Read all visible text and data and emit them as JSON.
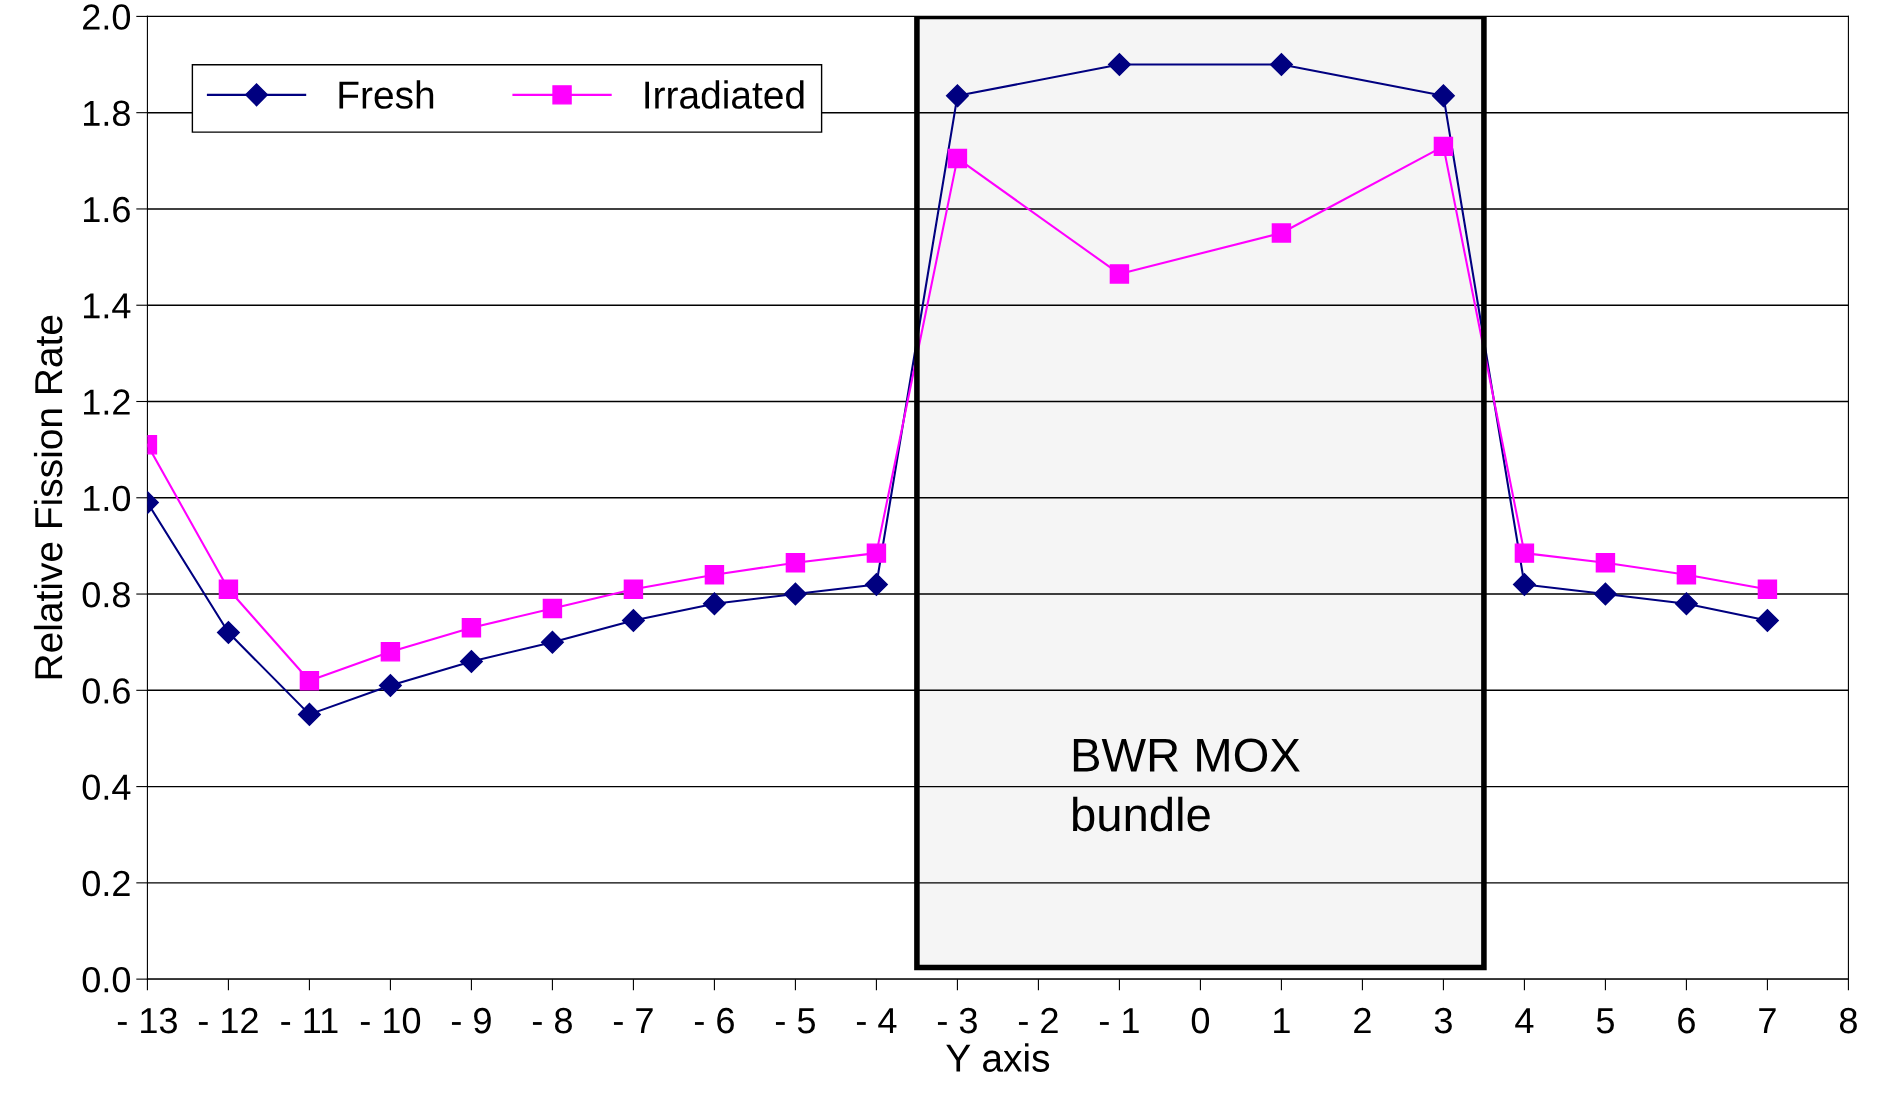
{
  "chart_data": {
    "type": "line",
    "xlabel": "Y axis",
    "ylabel": "Relative Fission Rate",
    "series": [
      {
        "name": "Fresh",
        "color": "#000080",
        "marker": "diamond",
        "x": [
          -13,
          -12,
          -11,
          -10,
          -9,
          -8,
          -7,
          -6,
          -5,
          -4,
          -3,
          -1,
          1,
          3,
          4,
          5,
          6,
          7
        ],
        "values": [
          0.99,
          0.72,
          0.55,
          0.61,
          0.66,
          0.7,
          0.745,
          0.78,
          0.8,
          0.82,
          1.835,
          1.9,
          1.9,
          1.835,
          0.82,
          0.8,
          0.78,
          0.745
        ]
      },
      {
        "name": "Irradiated",
        "color": "#ff00ff",
        "marker": "square",
        "x": [
          -13,
          -12,
          -11,
          -10,
          -9,
          -8,
          -7,
          -6,
          -5,
          -4,
          -3,
          -1,
          1,
          3,
          4,
          5,
          6,
          7
        ],
        "values": [
          1.11,
          0.81,
          0.62,
          0.68,
          0.73,
          0.77,
          0.81,
          0.84,
          0.865,
          0.885,
          1.705,
          1.465,
          1.55,
          1.73,
          0.885,
          0.865,
          0.84,
          0.81
        ]
      }
    ],
    "xlim": [
      -13,
      8
    ],
    "xticks": [
      {
        "value": -13,
        "label": "- 13"
      },
      {
        "value": -12,
        "label": "- 12"
      },
      {
        "value": -11,
        "label": "- 11"
      },
      {
        "value": -10,
        "label": "- 10"
      },
      {
        "value": -9,
        "label": "- 9"
      },
      {
        "value": -8,
        "label": "- 8"
      },
      {
        "value": -7,
        "label": "- 7"
      },
      {
        "value": -6,
        "label": "- 6"
      },
      {
        "value": -5,
        "label": "- 5"
      },
      {
        "value": -4,
        "label": "- 4"
      },
      {
        "value": -3,
        "label": "- 3"
      },
      {
        "value": -2,
        "label": "- 2"
      },
      {
        "value": -1,
        "label": "- 1"
      },
      0,
      1,
      2,
      3,
      4,
      5,
      6,
      7,
      8
    ],
    "ylim": [
      0,
      2
    ],
    "yticks": [
      {
        "value": 0,
        "label": "0.0"
      },
      {
        "value": 0.2,
        "label": "0.2"
      },
      {
        "value": 0.4,
        "label": "0.4"
      },
      {
        "value": 0.6,
        "label": "0.6"
      },
      {
        "value": 0.8,
        "label": "0.8"
      },
      {
        "value": 1,
        "label": "1.0"
      },
      {
        "value": 1.2,
        "label": "1.2"
      },
      {
        "value": 1.4,
        "label": "1.4"
      },
      {
        "value": 1.6,
        "label": "1.6"
      },
      {
        "value": 1.8,
        "label": "1.8"
      },
      {
        "value": 2,
        "label": "2.0"
      }
    ],
    "bands": [
      {
        "axis": "x",
        "from": -3.5,
        "to": 3.5,
        "label": "BWR MOX\nbundle",
        "color": "#000000"
      }
    ],
    "grid": "y",
    "legend": "top left"
  }
}
